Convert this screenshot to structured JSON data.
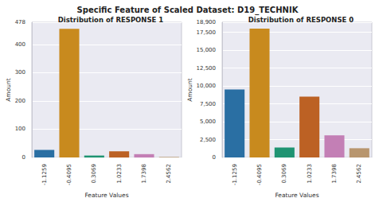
{
  "title": "Specific Feature of Scaled Dataset: D19_TECHNIK",
  "chart_data": [
    {
      "type": "bar",
      "title": "Distribution of RESPONSE 1",
      "x_label": "Feature Values",
      "y_label": "Amount",
      "categories": [
        "-1.1259",
        "-0.4095",
        "0.3069",
        "1.0233",
        "1.7398",
        "2.4562"
      ],
      "values": [
        27,
        455,
        7,
        22,
        12,
        2
      ],
      "colors": [
        "#2a6fa3",
        "#c88a1e",
        "#1f9472",
        "#bc6124",
        "#c37fb5",
        "#b8966e"
      ],
      "ylim": [
        0,
        478
      ],
      "yticks": [
        0,
        100,
        200,
        300,
        400
      ],
      "grid": true
    },
    {
      "type": "bar",
      "title": "Distribution of RESPONSE 0",
      "x_label": "Feature Values",
      "y_label": "Amount",
      "categories": [
        "-1.1259",
        "-0.4095",
        "0.3069",
        "1.0233",
        "1.7398",
        "2.4562"
      ],
      "values": [
        9500,
        18000,
        1400,
        8500,
        3100,
        1300
      ],
      "colors": [
        "#2a6fa3",
        "#c88a1e",
        "#1f9472",
        "#bc6124",
        "#c37fb5",
        "#b8966e"
      ],
      "ylim": [
        0,
        18900
      ],
      "yticks": [
        0,
        2500,
        5000,
        7500,
        10000,
        12500,
        15000,
        17500
      ],
      "grid": true
    }
  ]
}
